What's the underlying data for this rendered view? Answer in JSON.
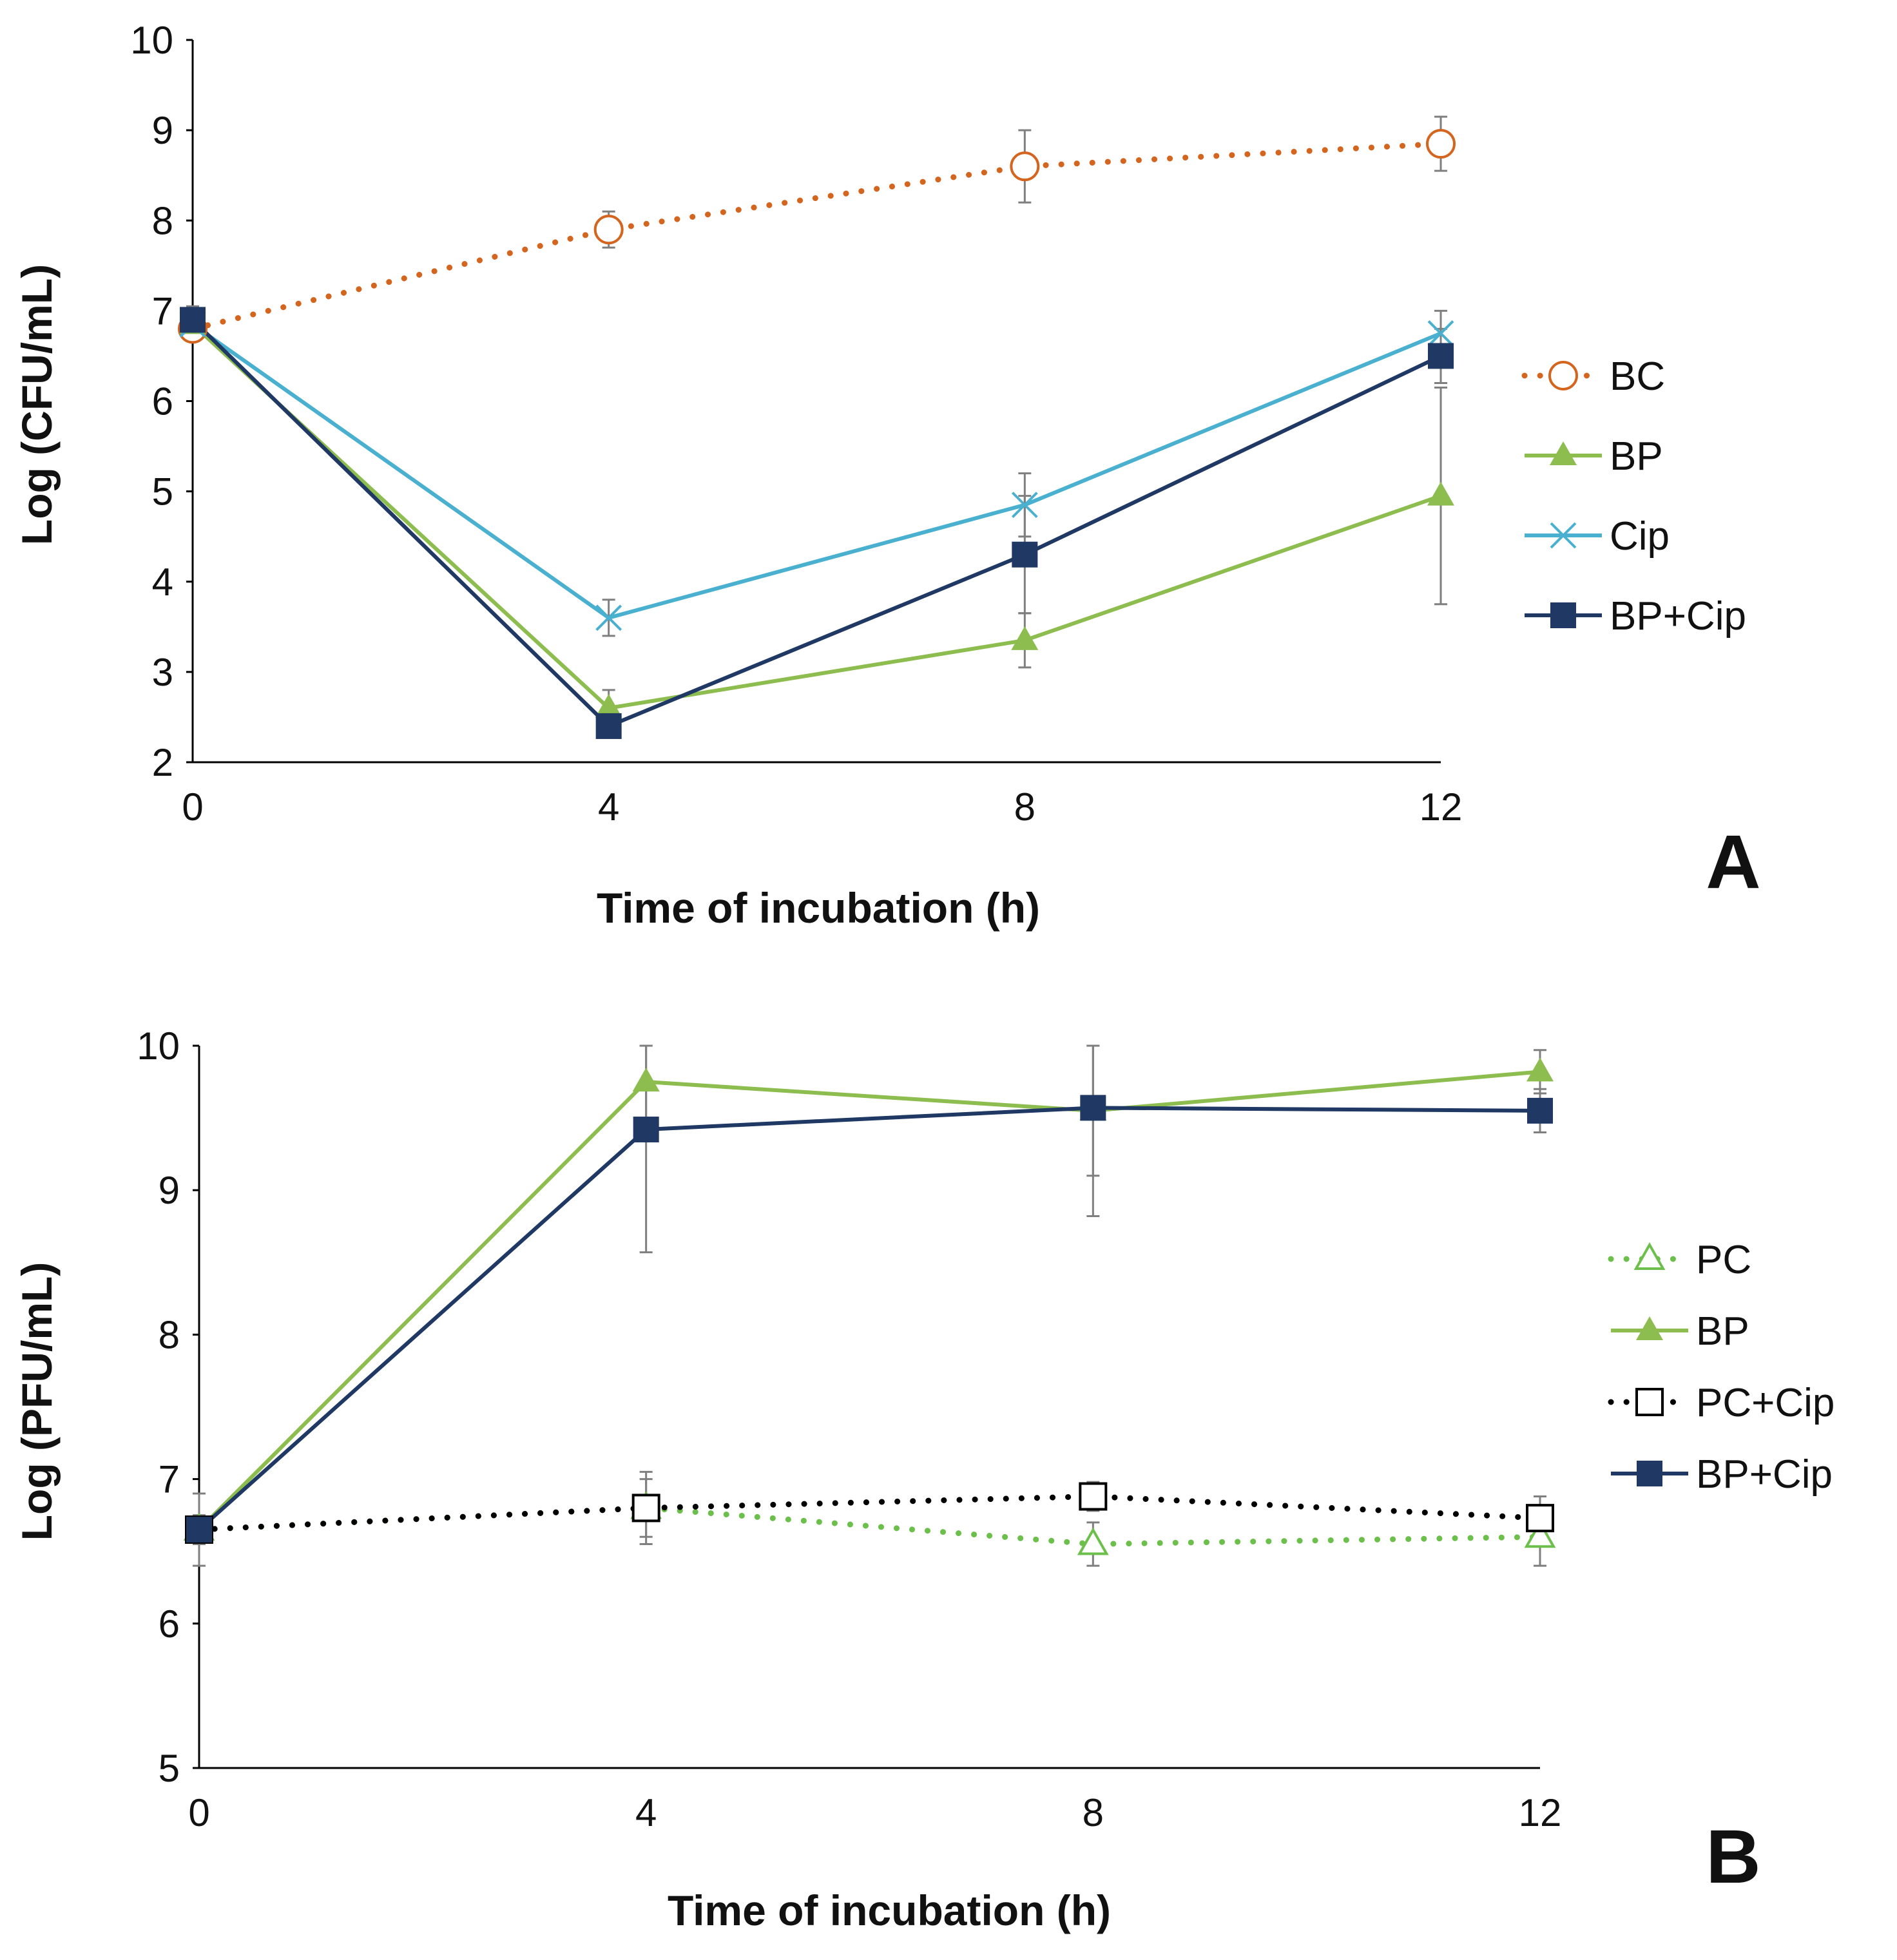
{
  "chart_data": [
    {
      "type": "line",
      "panel_label": "A",
      "xlabel": "Time of incubation (h)",
      "ylabel": "Log (CFU/mL)",
      "x": [
        0,
        4,
        8,
        12
      ],
      "xticks": [
        "0",
        "4",
        "8",
        "12"
      ],
      "yticks": [
        "2",
        "3",
        "4",
        "5",
        "6",
        "7",
        "8",
        "9",
        "10"
      ],
      "xlim": [
        0,
        12
      ],
      "ylim": [
        2,
        10
      ],
      "grid": false,
      "legend_position": "right",
      "series": [
        {
          "name": "BC",
          "values": [
            6.8,
            7.9,
            8.6,
            8.85
          ],
          "errors": [
            0.1,
            0.2,
            0.4,
            0.3
          ],
          "color": "#d4651f",
          "line": "dotted",
          "marker": "circle-open"
        },
        {
          "name": "BP",
          "values": [
            6.85,
            2.6,
            3.35,
            4.95
          ],
          "errors": [
            0.1,
            0.2,
            0.3,
            1.2
          ],
          "color": "#8dbd4e",
          "line": "solid",
          "marker": "triangle-filled"
        },
        {
          "name": "Cip",
          "values": [
            6.85,
            3.6,
            4.85,
            6.75
          ],
          "errors": [
            0.1,
            0.2,
            0.35,
            0.25
          ],
          "color": "#4ab0d0",
          "line": "solid",
          "marker": "x"
        },
        {
          "name": "BP+Cip",
          "values": [
            6.9,
            2.4,
            4.3,
            6.5
          ],
          "errors": [
            0.15,
            0.1,
            0.65,
            0.3
          ],
          "color": "#1f3864",
          "line": "solid",
          "marker": "square-filled"
        }
      ]
    },
    {
      "type": "line",
      "panel_label": "B",
      "xlabel": "Time of incubation (h)",
      "ylabel": "Log (PFU/mL)",
      "x": [
        0,
        4,
        8,
        12
      ],
      "xticks": [
        "0",
        "4",
        "8",
        "12"
      ],
      "yticks": [
        "5",
        "6",
        "7",
        "8",
        "9",
        "10"
      ],
      "xlim": [
        0,
        12
      ],
      "ylim": [
        5,
        10
      ],
      "grid": false,
      "legend_position": "right",
      "series": [
        {
          "name": "PC",
          "values": [
            6.65,
            6.8,
            6.55,
            6.6
          ],
          "errors": [
            0.25,
            0.2,
            0.15,
            0.2
          ],
          "color": "#6dbf4b",
          "line": "dotted",
          "marker": "triangle-open"
        },
        {
          "name": "BP",
          "values": [
            6.65,
            9.75,
            9.55,
            9.82
          ],
          "errors": [
            0.05,
            0.3,
            0.45,
            0.15
          ],
          "color": "#8dbd4e",
          "line": "solid",
          "marker": "triangle-filled"
        },
        {
          "name": "PC+Cip",
          "values": [
            6.65,
            6.8,
            6.88,
            6.73
          ],
          "errors": [
            0.05,
            0.25,
            0.1,
            0.15
          ],
          "color": "#000000",
          "line": "dotted",
          "marker": "square-open"
        },
        {
          "name": "BP+Cip",
          "values": [
            6.65,
            9.42,
            9.57,
            9.55
          ],
          "errors": [
            0.1,
            0.85,
            0.75,
            0.15
          ],
          "color": "#1f3864",
          "line": "solid",
          "marker": "square-filled"
        }
      ]
    }
  ]
}
